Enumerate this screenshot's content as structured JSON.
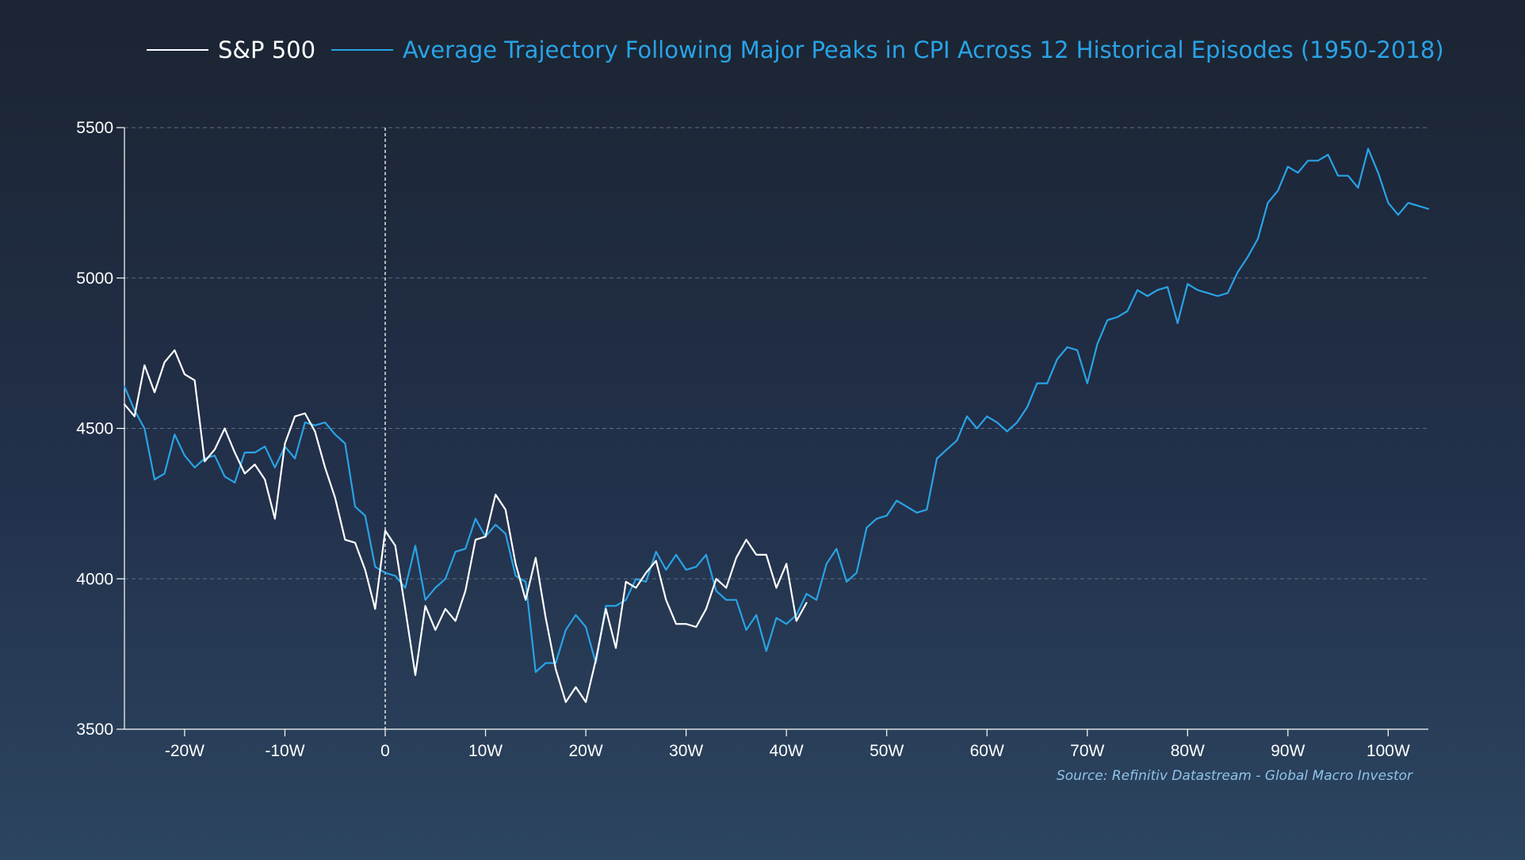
{
  "chart_data": {
    "type": "line",
    "xlim": [
      -26,
      104
    ],
    "ylim": [
      3500,
      5500
    ],
    "y_ticks": [
      3500,
      4000,
      4500,
      5000,
      5500
    ],
    "y_tick_labels": [
      "3500",
      "4000",
      "4500",
      "5000",
      "5500"
    ],
    "x_ticks": [
      -20,
      -10,
      0,
      10,
      20,
      30,
      40,
      50,
      60,
      70,
      80,
      90,
      100
    ],
    "x_tick_labels": [
      "-20W",
      "-10W",
      "0",
      "10W",
      "20W",
      "30W",
      "40W",
      "50W",
      "60W",
      "70W",
      "80W",
      "90W",
      "100W"
    ],
    "grid": "horizontal dashed",
    "reference_line_x": 0,
    "legend_position": "top",
    "source": "Source: Refinitiv Datastream - Global Macro Investor",
    "colors": {
      "sp500": "#ffffff",
      "average": "#29a3e6",
      "grid": "#5d6e82"
    },
    "series": [
      {
        "name": "S&P 500",
        "x": [
          -26,
          -25,
          -24,
          -23,
          -22,
          -21,
          -20,
          -19,
          -18,
          -17,
          -16,
          -15,
          -14,
          -13,
          -12,
          -11,
          -10,
          -9,
          -8,
          -7,
          -6,
          -5,
          -4,
          -3,
          -2,
          -1,
          0,
          1,
          2,
          3,
          4,
          5,
          6,
          7,
          8,
          9,
          10,
          11,
          12,
          13,
          14,
          15,
          16,
          17,
          18,
          19,
          20,
          21,
          22,
          23,
          24,
          25,
          26,
          27,
          28,
          29,
          30,
          31,
          32,
          33,
          34,
          35,
          36,
          37,
          38,
          39,
          40,
          41,
          42
        ],
        "y": [
          4580,
          4540,
          4710,
          4620,
          4720,
          4760,
          4680,
          4660,
          4390,
          4430,
          4500,
          4420,
          4350,
          4380,
          4330,
          4200,
          4450,
          4540,
          4550,
          4490,
          4370,
          4270,
          4130,
          4120,
          4030,
          3900,
          4160,
          4110,
          3900,
          3680,
          3910,
          3830,
          3900,
          3860,
          3960,
          4130,
          4140,
          4280,
          4230,
          4050,
          3930,
          4070,
          3870,
          3700,
          3590,
          3640,
          3590,
          3730,
          3900,
          3770,
          3990,
          3970,
          4020,
          4060,
          3930,
          3850,
          3850,
          3840,
          3900,
          4000,
          3970,
          4070,
          4130,
          4080,
          4080,
          3970,
          4050,
          3860,
          3920
        ]
      },
      {
        "name": "Average Trajectory Following Major Peaks in CPI Across 12 Historical Episodes (1950-2018)",
        "x": [
          -26,
          -25,
          -24,
          -23,
          -22,
          -21,
          -20,
          -19,
          -18,
          -17,
          -16,
          -15,
          -14,
          -13,
          -12,
          -11,
          -10,
          -9,
          -8,
          -7,
          -6,
          -5,
          -4,
          -3,
          -2,
          -1,
          0,
          1,
          2,
          3,
          4,
          5,
          6,
          7,
          8,
          9,
          10,
          11,
          12,
          13,
          14,
          15,
          16,
          17,
          18,
          19,
          20,
          21,
          22,
          23,
          24,
          25,
          26,
          27,
          28,
          29,
          30,
          31,
          32,
          33,
          34,
          35,
          36,
          37,
          38,
          39,
          40,
          41,
          42,
          43,
          44,
          45,
          46,
          47,
          48,
          49,
          50,
          51,
          52,
          53,
          54,
          55,
          56,
          57,
          58,
          59,
          60,
          61,
          62,
          63,
          64,
          65,
          66,
          67,
          68,
          69,
          70,
          71,
          72,
          73,
          74,
          75,
          76,
          77,
          78,
          79,
          80,
          81,
          82,
          83,
          84,
          85,
          86,
          87,
          88,
          89,
          90,
          91,
          92,
          93,
          94,
          95,
          96,
          97,
          98,
          99,
          100,
          101,
          102,
          103,
          104
        ],
        "y": [
          4640,
          4560,
          4500,
          4330,
          4350,
          4480,
          4410,
          4370,
          4400,
          4410,
          4340,
          4320,
          4420,
          4420,
          4440,
          4370,
          4440,
          4400,
          4520,
          4510,
          4520,
          4480,
          4450,
          4240,
          4210,
          4040,
          4020,
          4010,
          3970,
          4110,
          3930,
          3970,
          4000,
          4090,
          4100,
          4200,
          4140,
          4180,
          4150,
          4010,
          3990,
          3690,
          3720,
          3720,
          3830,
          3880,
          3840,
          3720,
          3910,
          3910,
          3930,
          4000,
          3990,
          4090,
          4030,
          4080,
          4030,
          4040,
          4080,
          3960,
          3930,
          3930,
          3830,
          3880,
          3760,
          3870,
          3850,
          3880,
          3950,
          3930,
          4050,
          4100,
          3990,
          4020,
          4170,
          4200,
          4210,
          4260,
          4240,
          4220,
          4230,
          4400,
          4430,
          4460,
          4540,
          4500,
          4540,
          4520,
          4490,
          4520,
          4570,
          4650,
          4650,
          4730,
          4770,
          4760,
          4650,
          4780,
          4860,
          4870,
          4890,
          4960,
          4940,
          4960,
          4970,
          4850,
          4980,
          4960,
          4950,
          4940,
          4950,
          5020,
          5070,
          5130,
          5250,
          5290,
          5370,
          5350,
          5390,
          5390,
          5410,
          5340,
          5340,
          5300,
          5430,
          5350,
          5250,
          5210,
          5250,
          5240,
          5230
        ]
      }
    ]
  }
}
